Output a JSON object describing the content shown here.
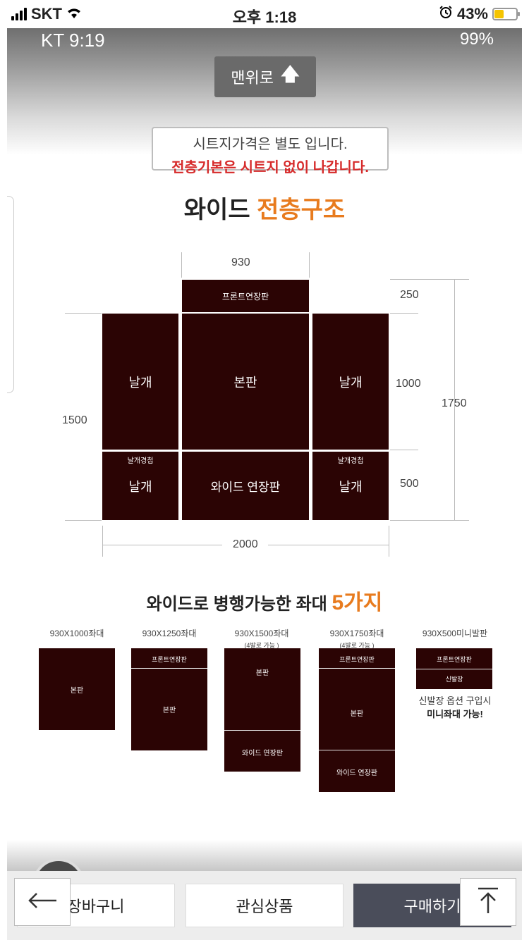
{
  "status": {
    "carrier": "SKT",
    "time": "오후 1:18",
    "battery": "43%"
  },
  "inner_status": {
    "left": "KT 9:19",
    "right": "99%"
  },
  "top_button": {
    "label": "맨위로"
  },
  "notice": {
    "line1": "시트지가격은 별도 입니다.",
    "line2": "전층기본은 시트지 없이 나갑니다."
  },
  "heading": {
    "main": "와이드",
    "accent": "전층구조"
  },
  "diagram": {
    "front_ext": "프론트연장판",
    "center": "본판",
    "wing": "날개",
    "wing_joint": "날개경첩",
    "wide_ext": "와이드 연장판",
    "dims": {
      "top": "930",
      "right_top": "250",
      "right_mid": "1000",
      "right_bot": "500",
      "right_total": "1750",
      "left": "1500",
      "bottom": "2000"
    }
  },
  "section2": {
    "main": "와이드로 병행가능한 좌대",
    "accent": "5가지"
  },
  "items": [
    {
      "caption": "930X1000좌대",
      "sub": "",
      "blocks": [
        "본판"
      ]
    },
    {
      "caption": "930X1250좌대",
      "sub": "",
      "blocks": [
        "프론트연장판",
        "본판"
      ]
    },
    {
      "caption": "930X1500좌대",
      "sub": "(4발로 가능 )",
      "blocks": [
        "본판",
        "와이드 연장판"
      ]
    },
    {
      "caption": "930X1750좌대",
      "sub": "(4발로 가능 )",
      "blocks": [
        "프론트연장판",
        "본판",
        "와이드 연장판"
      ]
    },
    {
      "caption": "930X500미니발판",
      "sub": "",
      "blocks": [
        "프론트연장판",
        "신발장"
      ]
    }
  ],
  "mini_note": {
    "line1": "신발장 옵션 구입시",
    "line2": "미니좌대 가능!"
  },
  "bottom_bar": {
    "cart": "장바구니",
    "wish": "관심상품",
    "buy": "구매하기"
  }
}
